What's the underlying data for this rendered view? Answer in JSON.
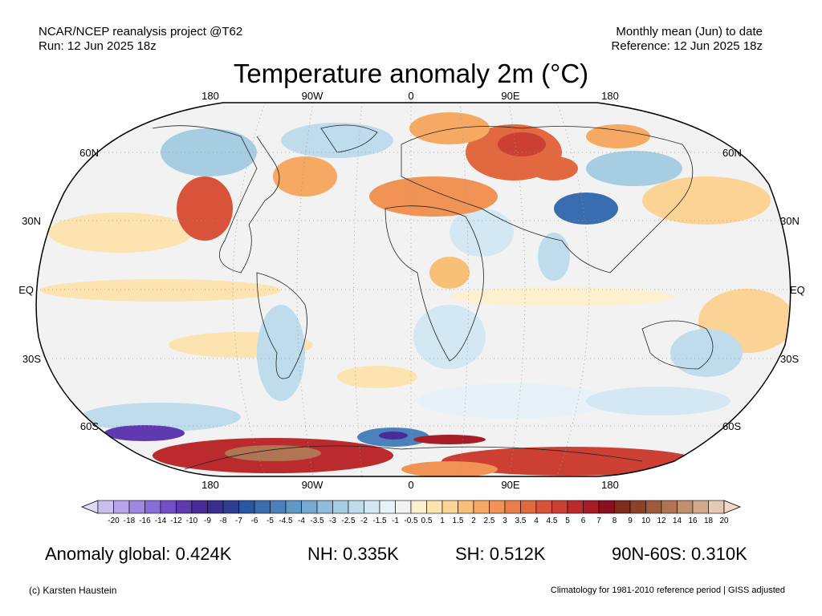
{
  "header": {
    "source": "NCAR/NCEP reanalysis project @T62",
    "run": "Run: 12 Jun 2025 18z",
    "period": "Monthly mean (Jun) to date",
    "reference": "Reference: 12 Jun 2025 18z"
  },
  "title": "Temperature anomaly 2m (°C)",
  "axes": {
    "lon_top": [
      "180",
      "90W",
      "0",
      "90E",
      "180"
    ],
    "lon_bottom": [
      "180",
      "90W",
      "0",
      "90E",
      "180"
    ],
    "lat_left": [
      "60N",
      "30N",
      "EQ",
      "30S",
      "60S"
    ],
    "lat_right": [
      "60N",
      "30N",
      "EQ",
      "30S",
      "60S"
    ]
  },
  "colorbar": {
    "labels": [
      "-20",
      "-18",
      "-16",
      "-14",
      "-12",
      "-10",
      "-9",
      "-8",
      "-7",
      "-6",
      "-5",
      "-4.5",
      "-4",
      "-3.5",
      "-3",
      "-2.5",
      "-2",
      "-1.5",
      "-1",
      "-0.5",
      "0.5",
      "1",
      "1.5",
      "2",
      "2.5",
      "3",
      "3.5",
      "4",
      "4.5",
      "5",
      "6",
      "7",
      "8",
      "9",
      "10",
      "12",
      "14",
      "16",
      "18",
      "20"
    ],
    "colors": [
      "#c9c0f0",
      "#b4a4ea",
      "#9f88e2",
      "#8a6cd8",
      "#7350c6",
      "#5e3aae",
      "#4a2c98",
      "#3a2f8c",
      "#2e3f92",
      "#2b56a2",
      "#3a6db0",
      "#4b82bb",
      "#5f97c6",
      "#76aad0",
      "#8fbcda",
      "#a7cde3",
      "#bedcec",
      "#d3e8f3",
      "#e6f2f8",
      "#f2f2f2",
      "#fdf0cf",
      "#fce3b0",
      "#fbd394",
      "#f8bf77",
      "#f5a962",
      "#f09354",
      "#ea7d49",
      "#e26840",
      "#d8533a",
      "#cc3f33",
      "#bb2b2d",
      "#a61d26",
      "#8c0f1e",
      "#7e2b1c",
      "#8d4128",
      "#9e5a3c",
      "#b07553",
      "#c08f6d",
      "#d3ab8c",
      "#e6c9b2"
    ]
  },
  "map": {
    "land_outline": "coastlines",
    "graticule": "dotted"
  },
  "stats": {
    "global": "Anomaly global: 0.424K",
    "nh": "NH: 0.335K",
    "sh": "SH: 0.512K",
    "polar": "90N-60S: 0.310K"
  },
  "footer": {
    "credit": "(c) Karsten Haustein",
    "note": "Climatology for 1981-2010 reference period | GISS adjusted"
  }
}
